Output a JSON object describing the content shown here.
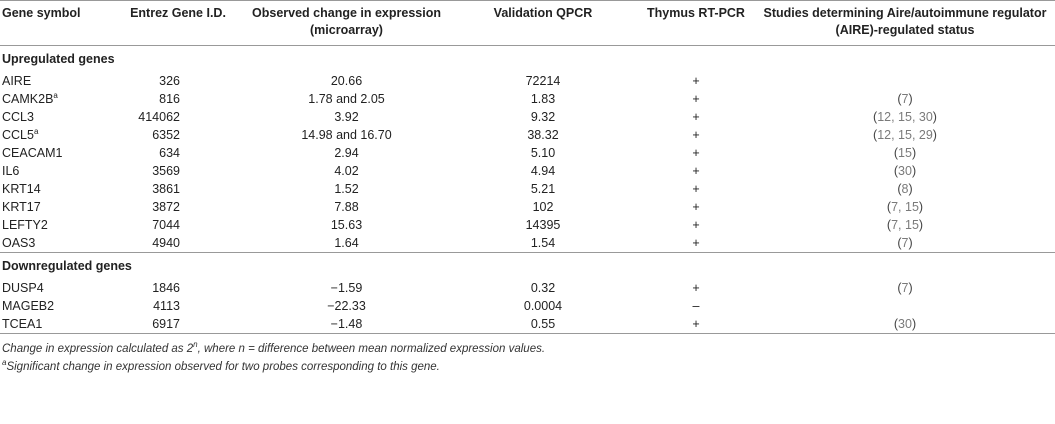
{
  "headers": {
    "gene_symbol": "Gene symbol",
    "entrez": "Entrez Gene I.D.",
    "observed_change": "Observed change in expression (microarray)",
    "validation_qpcr": "Validation QPCR",
    "thymus_rtpcr": "Thymus RT-PCR",
    "studies": "Studies determining Aire/autoimmune regulator (AIRE)-regulated status"
  },
  "sections": {
    "up": "Upregulated genes",
    "down": "Downregulated genes"
  },
  "upregulated": [
    {
      "symbol": "AIRE",
      "sup": "",
      "entrez": "326",
      "change": "20.66",
      "qpcr": "72214",
      "thymus": "+",
      "studies_open": "",
      "studies_refs": "",
      "studies_close": ""
    },
    {
      "symbol": "CAMK2B",
      "sup": "a",
      "entrez": "816",
      "change": "1.78 and 2.05",
      "qpcr": "1.83",
      "thymus": "+",
      "studies_open": "(",
      "studies_refs": "7",
      "studies_close": ")"
    },
    {
      "symbol": "CCL3",
      "sup": "",
      "entrez": "414062",
      "change": "3.92",
      "qpcr": "9.32",
      "thymus": "+",
      "studies_open": "(",
      "studies_refs": "12, 15, 30",
      "studies_close": ")"
    },
    {
      "symbol": "CCL5",
      "sup": "a",
      "entrez": "6352",
      "change": "14.98 and 16.70",
      "qpcr": "38.32",
      "thymus": "+",
      "studies_open": "(",
      "studies_refs": "12, 15, 29",
      "studies_close": ")"
    },
    {
      "symbol": "CEACAM1",
      "sup": "",
      "entrez": "634",
      "change": "2.94",
      "qpcr": "5.10",
      "thymus": "+",
      "studies_open": "(",
      "studies_refs": "15",
      "studies_close": ")"
    },
    {
      "symbol": "IL6",
      "sup": "",
      "entrez": "3569",
      "change": "4.02",
      "qpcr": "4.94",
      "thymus": "+",
      "studies_open": "(",
      "studies_refs": "30",
      "studies_close": ")"
    },
    {
      "symbol": "KRT14",
      "sup": "",
      "entrez": "3861",
      "change": "1.52",
      "qpcr": "5.21",
      "thymus": "+",
      "studies_open": "(",
      "studies_refs": "8",
      "studies_close": ")"
    },
    {
      "symbol": "KRT17",
      "sup": "",
      "entrez": "3872",
      "change": "7.88",
      "qpcr": "102",
      "thymus": "+",
      "studies_open": "(",
      "studies_refs": "7, 15",
      "studies_close": ")"
    },
    {
      "symbol": "LEFTY2",
      "sup": "",
      "entrez": "7044",
      "change": "15.63",
      "qpcr": "14395",
      "thymus": "+",
      "studies_open": "(",
      "studies_refs": "7, 15",
      "studies_close": ")"
    },
    {
      "symbol": "OAS3",
      "sup": "",
      "entrez": "4940",
      "change": "1.64",
      "qpcr": "1.54",
      "thymus": "+",
      "studies_open": "(",
      "studies_refs": "7",
      "studies_close": ")"
    }
  ],
  "downregulated": [
    {
      "symbol": "DUSP4",
      "sup": "",
      "entrez": "1846",
      "change": "−1.59",
      "qpcr": "0.32",
      "thymus": "+",
      "studies_open": "(",
      "studies_refs": "7",
      "studies_close": ")"
    },
    {
      "symbol": "MAGEB2",
      "sup": "",
      "entrez": "4113",
      "change": "−22.33",
      "qpcr": "0.0004",
      "thymus": "–",
      "studies_open": "",
      "studies_refs": "",
      "studies_close": ""
    },
    {
      "symbol": "TCEA1",
      "sup": "",
      "entrez": "6917",
      "change": "−1.48",
      "qpcr": "0.55",
      "thymus": "+",
      "studies_open": "(",
      "studies_refs": "30",
      "studies_close": ")"
    }
  ],
  "footnotes": {
    "note1_pre": "Change in expression calculated as 2",
    "note1_sup": "n",
    "note1_post": ", where n = difference between mean normalized expression values.",
    "note2_sup": "a",
    "note2_text": "Significant change in expression observed for two probes corresponding to this gene."
  }
}
